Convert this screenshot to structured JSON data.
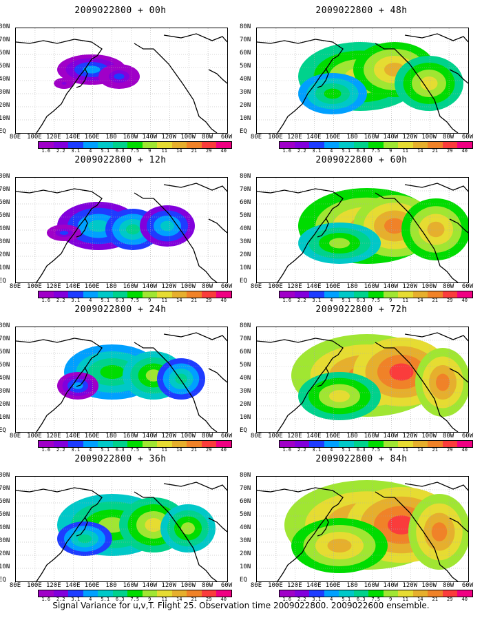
{
  "colors": [
    "#a000c8",
    "#8200dc",
    "#1e3cff",
    "#00a0ff",
    "#00c8c8",
    "#00d28c",
    "#00dc00",
    "#a0e632",
    "#e6dc32",
    "#e6af2d",
    "#f08228",
    "#fa3c3c",
    "#f00082"
  ],
  "colorbar_labels": [
    "1.6",
    "2.2",
    "3.1",
    "4",
    "5.1",
    "6.3",
    "7.5",
    "9",
    "11",
    "14",
    "21",
    "29",
    "40"
  ],
  "x_tick_labels": [
    "80E",
    "100E",
    "120E",
    "140E",
    "160E",
    "180",
    "160W",
    "140W",
    "120W",
    "100W",
    "80W",
    "60W"
  ],
  "y_tick_labels": [
    "EQ",
    "10N",
    "20N",
    "30N",
    "40N",
    "50N",
    "60N",
    "70N",
    "80N"
  ],
  "panels": [
    {
      "title": "2009022800 + 00h",
      "level": 0
    },
    {
      "title": "2009022800 + 48h",
      "level": 4
    },
    {
      "title": "2009022800 + 12h",
      "level": 1
    },
    {
      "title": "2009022800 + 60h",
      "level": 5
    },
    {
      "title": "2009022800 + 24h",
      "level": 2
    },
    {
      "title": "2009022800 + 72h",
      "level": 6
    },
    {
      "title": "2009022800 + 36h",
      "level": 3
    },
    {
      "title": "2009022800 + 84h",
      "level": 7
    }
  ],
  "footer": "Signal Variance for u,v,T. Flight 25. Observation time 2009022800. 2009022600 ensemble."
}
